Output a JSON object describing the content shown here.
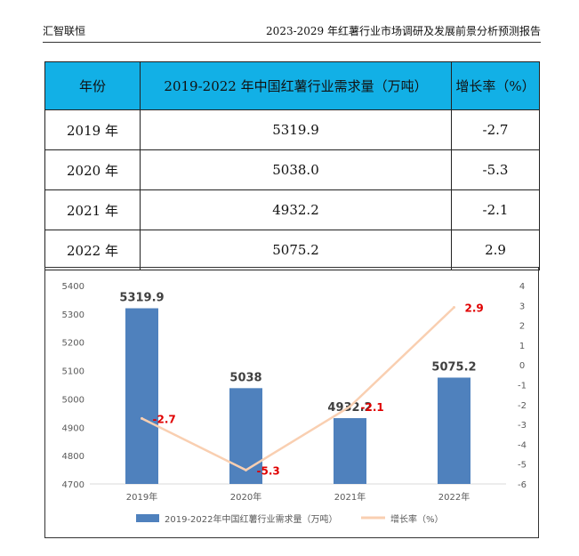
{
  "header": {
    "left": "汇智联恒",
    "right": "2023-2029 年红薯行业市场调研及发展前景分析预测报告"
  },
  "table": {
    "columns": [
      "年份",
      "2019-2022 年中国红薯行业需求量（万吨）",
      "增长率（%）"
    ],
    "rows": [
      [
        "2019 年",
        "5319.9",
        "-2.7"
      ],
      [
        "2020 年",
        "5038.0",
        "-5.3"
      ],
      [
        "2021 年",
        "4932.2",
        "-2.1"
      ],
      [
        "2022 年",
        "5075.2",
        "2.9"
      ]
    ]
  },
  "chart_data": {
    "type": "bar",
    "categories": [
      "2019年",
      "2020年",
      "2021年",
      "2022年"
    ],
    "series": [
      {
        "name": "2019-2022年中国红薯行业需求量（万吨）",
        "kind": "bar",
        "axis": "left",
        "values": [
          5319.9,
          5038,
          4932.2,
          5075.2
        ],
        "labels": [
          "5319.9",
          "5038",
          "4932.2",
          "5075.2"
        ]
      },
      {
        "name": "增长率（%）",
        "kind": "line",
        "axis": "right",
        "values": [
          -2.7,
          -5.3,
          -2.1,
          2.9
        ],
        "labels": [
          "-2.7",
          "-5.3",
          "-2.1",
          "2.9"
        ]
      }
    ],
    "ylim": [
      4700,
      5400
    ],
    "yticks": [
      "4700",
      "4800",
      "4900",
      "5000",
      "5100",
      "5200",
      "5300",
      "5400"
    ],
    "y2lim": [
      -6,
      4
    ],
    "y2ticks": [
      "-6",
      "-5",
      "-4",
      "-3",
      "-2",
      "-1",
      "0",
      "1",
      "2",
      "3",
      "4"
    ],
    "colors": {
      "bar": "#4f81bd",
      "line": "#f9cfb1",
      "line_label": "#e00000"
    },
    "legend_position": "bottom"
  }
}
